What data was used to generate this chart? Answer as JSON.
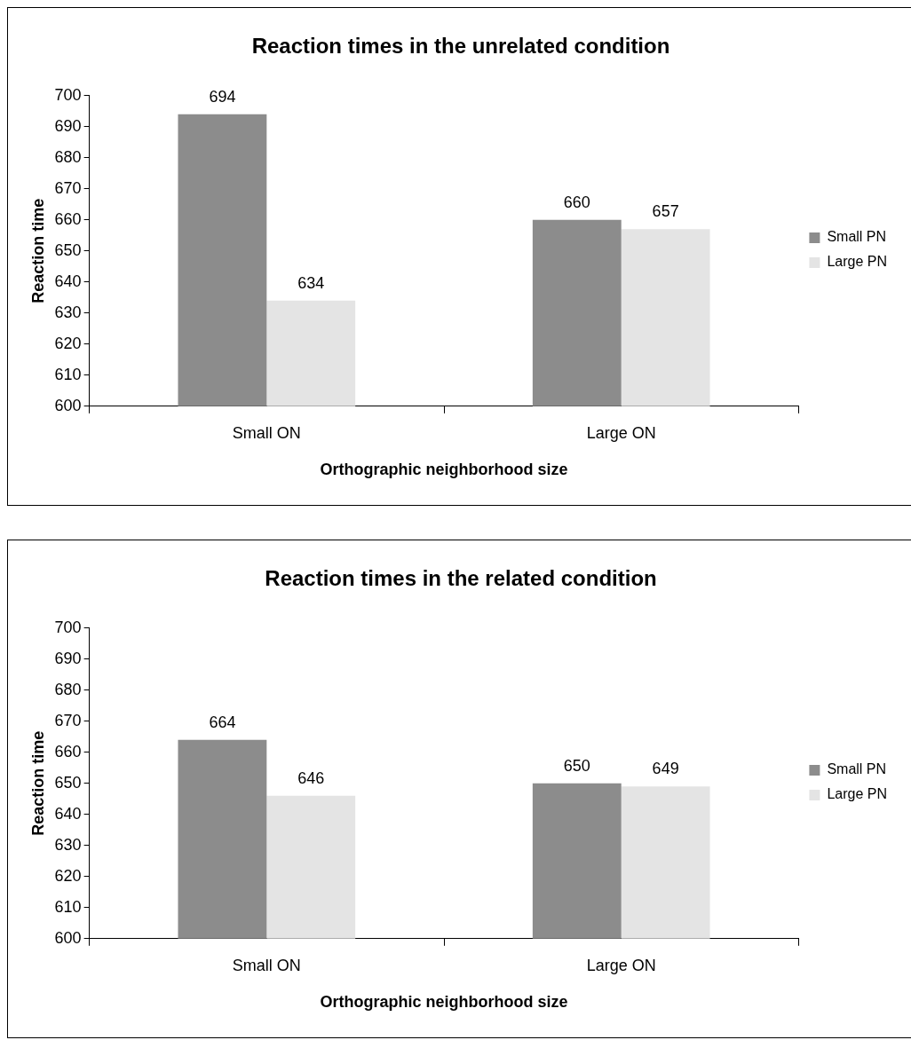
{
  "chart_data": [
    {
      "type": "bar",
      "title": "Reaction times in the unrelated condition",
      "xlabel": "Orthographic neighborhood size",
      "ylabel": "Reaction time",
      "categories": [
        "Small ON",
        "Large ON"
      ],
      "series": [
        {
          "name": "Small PN",
          "color": "#8c8c8c",
          "values": [
            694,
            660
          ]
        },
        {
          "name": "Large PN",
          "color": "#e4e4e4",
          "values": [
            634,
            657
          ]
        }
      ],
      "ylim": [
        600,
        700
      ],
      "yticks": [
        600,
        610,
        620,
        630,
        640,
        650,
        660,
        670,
        680,
        690,
        700
      ],
      "grid": false,
      "legend": "right",
      "data_labels": true
    },
    {
      "type": "bar",
      "title": "Reaction times in the related condition",
      "xlabel": "Orthographic neighborhood size",
      "ylabel": "Reaction time",
      "categories": [
        "Small ON",
        "Large ON"
      ],
      "series": [
        {
          "name": "Small PN",
          "color": "#8c8c8c",
          "values": [
            664,
            650
          ]
        },
        {
          "name": "Large PN",
          "color": "#e4e4e4",
          "values": [
            646,
            649
          ]
        }
      ],
      "ylim": [
        600,
        700
      ],
      "yticks": [
        600,
        610,
        620,
        630,
        640,
        650,
        660,
        670,
        680,
        690,
        700
      ],
      "grid": false,
      "legend": "right",
      "data_labels": true
    }
  ]
}
